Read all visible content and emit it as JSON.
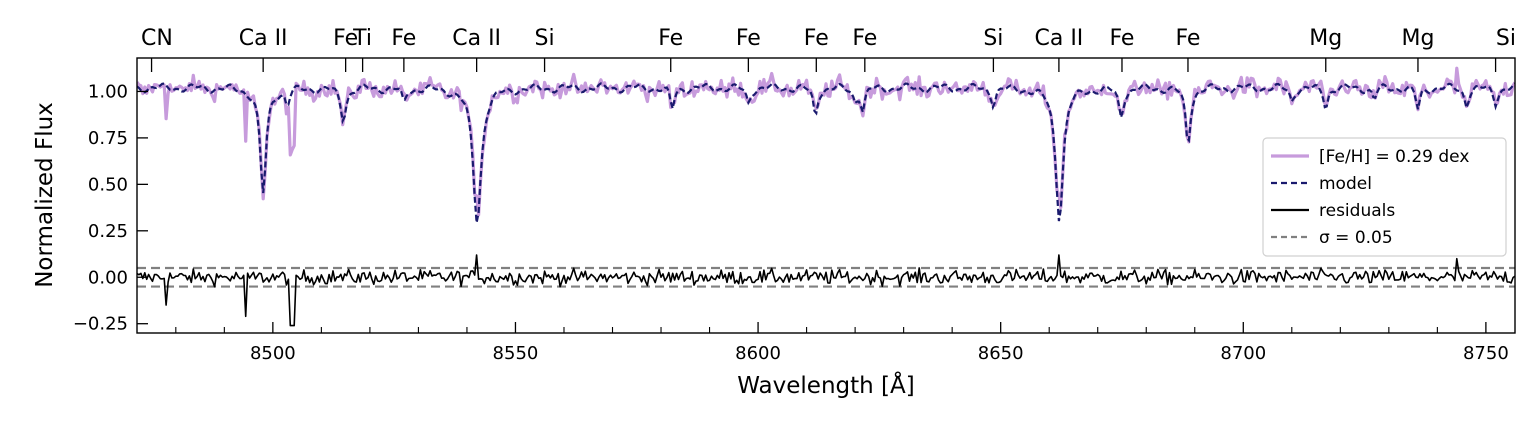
{
  "chart_data": {
    "type": "line",
    "xlabel": "Wavelength [Å]",
    "ylabel": "Normalized Flux",
    "xlim": [
      8472,
      8756
    ],
    "ylim": [
      -0.3,
      1.18
    ],
    "x_ticks": [
      8500,
      8550,
      8600,
      8650,
      8700,
      8750
    ],
    "y_ticks": [
      1.0,
      0.75,
      0.5,
      0.25,
      0.0,
      -0.25
    ],
    "y_tick_labels": [
      "1.00",
      "0.75",
      "0.50",
      "0.25",
      "0.00",
      "−0.25"
    ],
    "grid": false,
    "legend_position": "right",
    "legend": [
      {
        "label": "[Fe/H] = 0.29 dex",
        "color": "#c79bdc",
        "style": "solid"
      },
      {
        "label": "model",
        "color": "#1a1a6e",
        "style": "dashed"
      },
      {
        "label": "residuals",
        "color": "#000000",
        "style": "solid"
      },
      {
        "label": "σ = 0.05",
        "color": "#808080",
        "style": "dashed"
      }
    ],
    "sigma": 0.05,
    "continuum": 1.02,
    "line_identifications": [
      {
        "label": "CN",
        "x": 8475
      },
      {
        "label": "Ca II",
        "x": 8498
      },
      {
        "label": "Fe",
        "x": 8515
      },
      {
        "label": "Ti",
        "x": 8518.5
      },
      {
        "label": "Fe",
        "x": 8527
      },
      {
        "label": "Ca II",
        "x": 8542
      },
      {
        "label": "Si",
        "x": 8556
      },
      {
        "label": "Fe",
        "x": 8582
      },
      {
        "label": "Fe",
        "x": 8598
      },
      {
        "label": "Fe",
        "x": 8612
      },
      {
        "label": "Fe",
        "x": 8622
      },
      {
        "label": "Si",
        "x": 8648.5
      },
      {
        "label": "Ca II",
        "x": 8662
      },
      {
        "label": "Fe",
        "x": 8675
      },
      {
        "label": "Fe",
        "x": 8688.6
      },
      {
        "label": "Mg",
        "x": 8717
      },
      {
        "label": "Mg",
        "x": 8736
      },
      {
        "label": "Si",
        "x": 8752
      }
    ],
    "absorption_features": [
      {
        "x": 8498.0,
        "depth": 0.57,
        "width": 0.9
      },
      {
        "x": 8542.1,
        "depth": 0.72,
        "width": 1.2
      },
      {
        "x": 8662.1,
        "depth": 0.7,
        "width": 1.1
      },
      {
        "x": 8688.6,
        "depth": 0.3,
        "width": 0.7
      },
      {
        "x": 8514.5,
        "depth": 0.16,
        "width": 0.8
      },
      {
        "x": 8527.0,
        "depth": 0.08,
        "width": 0.6
      },
      {
        "x": 8582.3,
        "depth": 0.12,
        "width": 0.6
      },
      {
        "x": 8598.0,
        "depth": 0.08,
        "width": 0.6
      },
      {
        "x": 8611.8,
        "depth": 0.15,
        "width": 0.6
      },
      {
        "x": 8621.6,
        "depth": 0.12,
        "width": 0.6
      },
      {
        "x": 8648.5,
        "depth": 0.08,
        "width": 0.6
      },
      {
        "x": 8674.8,
        "depth": 0.15,
        "width": 0.7
      },
      {
        "x": 8717.0,
        "depth": 0.1,
        "width": 0.6
      },
      {
        "x": 8736.0,
        "depth": 0.12,
        "width": 0.6
      },
      {
        "x": 8752.0,
        "depth": 0.08,
        "width": 0.6
      },
      {
        "x": 8503.0,
        "depth": 0.08,
        "width": 0.6
      },
      {
        "x": 8620.0,
        "depth": 0.06,
        "width": 0.6
      },
      {
        "x": 8710.0,
        "depth": 0.07,
        "width": 0.6
      },
      {
        "x": 8727.0,
        "depth": 0.06,
        "width": 0.6
      },
      {
        "x": 8746.0,
        "depth": 0.09,
        "width": 0.6
      }
    ],
    "residual_spikes": [
      {
        "x": 8494.5,
        "value": -0.21
      },
      {
        "x": 8503.5,
        "value": -0.26
      },
      {
        "x": 8504.2,
        "value": -0.26
      },
      {
        "x": 8542.0,
        "value": 0.12
      },
      {
        "x": 8662.0,
        "value": 0.12
      },
      {
        "x": 8744.0,
        "value": 0.1
      },
      {
        "x": 8478.0,
        "value": -0.15
      }
    ]
  }
}
